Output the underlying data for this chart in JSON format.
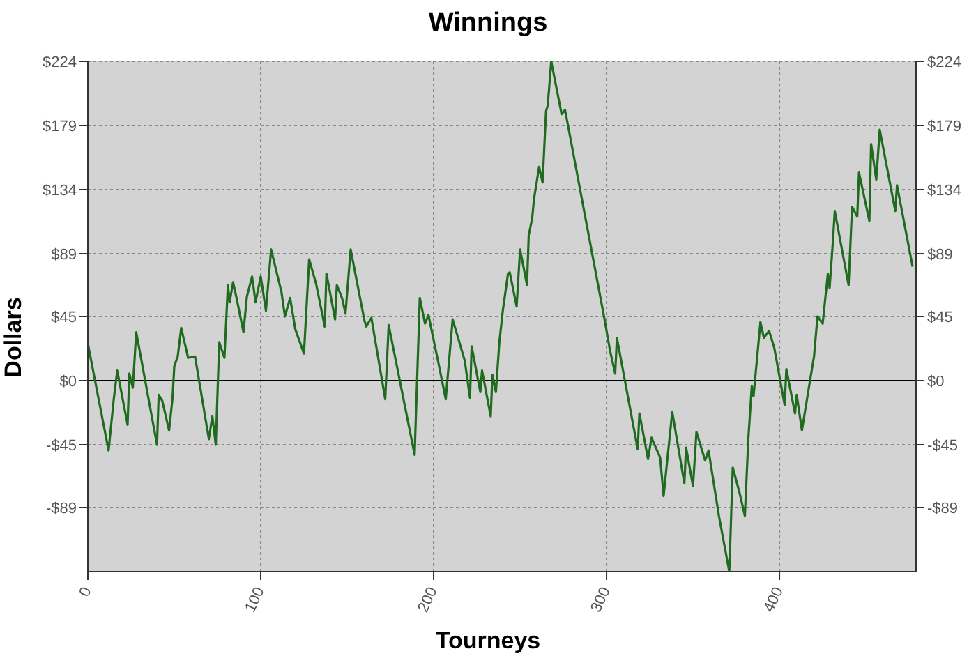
{
  "chart_data": {
    "type": "line",
    "title": "Winnings",
    "xlabel": "Tourneys",
    "ylabel": "Dollars",
    "x": [
      0,
      12,
      15,
      17,
      23,
      24,
      26,
      28,
      40,
      41,
      43,
      47,
      49,
      50,
      52,
      54,
      58,
      62,
      70,
      72,
      74,
      76,
      79,
      81,
      82,
      84,
      86,
      90,
      92,
      95,
      97,
      100,
      103,
      106,
      112,
      114,
      117,
      120,
      125,
      128,
      132,
      137,
      138,
      143,
      144,
      147,
      149,
      152,
      160,
      161,
      164,
      172,
      174,
      189,
      192,
      195,
      197,
      203,
      207,
      211,
      218,
      221,
      222,
      227,
      228,
      233,
      234,
      236,
      238,
      240,
      243,
      244,
      248,
      250,
      254,
      255,
      257,
      258,
      261,
      263,
      265,
      266,
      268,
      274,
      276,
      299,
      302,
      305,
      306,
      318,
      319,
      324,
      326,
      331,
      333,
      335,
      338,
      345,
      346,
      350,
      352,
      357,
      359,
      365,
      371,
      373,
      377,
      380,
      382,
      384,
      385,
      389,
      391,
      394,
      397,
      403,
      404,
      409,
      410,
      413,
      417,
      420,
      422,
      425,
      428,
      429,
      431,
      432,
      440,
      442,
      445,
      446,
      452,
      453,
      456,
      458,
      467,
      468,
      477
    ],
    "series": [
      {
        "color": "#1f6b1f",
        "values": [
          26,
          -49,
          -13,
          7,
          -31,
          5,
          -5,
          34,
          -45,
          -10,
          -14,
          -35,
          -12,
          10,
          17,
          37,
          16,
          17,
          -41,
          -25,
          -45,
          27,
          16,
          67,
          55,
          69,
          58,
          34,
          59,
          73,
          55,
          73,
          49,
          92,
          62,
          45,
          58,
          36,
          19,
          85,
          68,
          38,
          75,
          43,
          67,
          58,
          47,
          92,
          42,
          38,
          44,
          -13,
          39,
          -52,
          58,
          40,
          46,
          11,
          -13,
          43,
          14,
          -12,
          24,
          -8,
          7,
          -25,
          4,
          -8,
          27,
          49,
          75,
          76,
          52,
          92,
          67,
          102,
          114,
          127,
          150,
          139,
          189,
          193,
          224,
          187,
          190,
          42,
          21,
          5,
          30,
          -48,
          -23,
          -55,
          -40,
          -54,
          -81,
          -57,
          -22,
          -72,
          -47,
          -74,
          -36,
          -56,
          -49,
          -95,
          -134,
          -61,
          -79,
          -95,
          -41,
          -4,
          -11,
          41,
          30,
          35,
          23,
          -17,
          8,
          -23,
          -10,
          -35,
          -5,
          17,
          45,
          40,
          75,
          65,
          99,
          119,
          67,
          122,
          115,
          146,
          112,
          166,
          141,
          176,
          119,
          137,
          80
        ]
      }
    ],
    "xlim": [
      0,
      479
    ],
    "xticks": [
      0,
      100,
      200,
      300,
      400
    ],
    "ylim": [
      -134,
      224
    ],
    "yticks": [
      {
        "value": 224,
        "label": "$224"
      },
      {
        "value": 179,
        "label": "$179"
      },
      {
        "value": 134,
        "label": "$134"
      },
      {
        "value": 89,
        "label": "$89"
      },
      {
        "value": 45,
        "label": "$45"
      },
      {
        "value": 0,
        "label": "$0"
      },
      {
        "value": -45,
        "label": "-$45"
      },
      {
        "value": -89,
        "label": "-$89"
      }
    ],
    "y2lim": [
      -134,
      224
    ],
    "y2ticks": [
      {
        "value": 224,
        "label": "$224"
      },
      {
        "value": 179,
        "label": "$179"
      },
      {
        "value": 134,
        "label": "$134"
      },
      {
        "value": 89,
        "label": "$89"
      },
      {
        "value": 45,
        "label": "$45"
      },
      {
        "value": 0,
        "label": "$0"
      },
      {
        "value": -45,
        "label": "-$45"
      },
      {
        "value": -89,
        "label": "-$89"
      }
    ],
    "ref_lines": [
      {
        "axis": "y",
        "value": 0,
        "color": "#000000",
        "line_style": "solid"
      }
    ],
    "grid": true,
    "marker": "none",
    "line_style": "solid"
  }
}
